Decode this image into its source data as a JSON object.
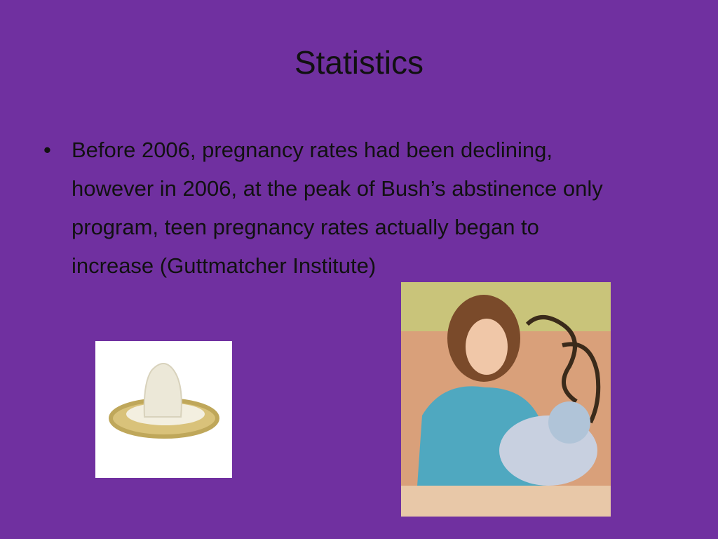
{
  "title": "Statistics",
  "bullets": [
    "Before 2006, pregnancy rates had been declining, however in 2006, at the peak of Bush’s abstinence only program, teen pregnancy rates actually began to increase (Guttmatcher Institute)"
  ]
}
